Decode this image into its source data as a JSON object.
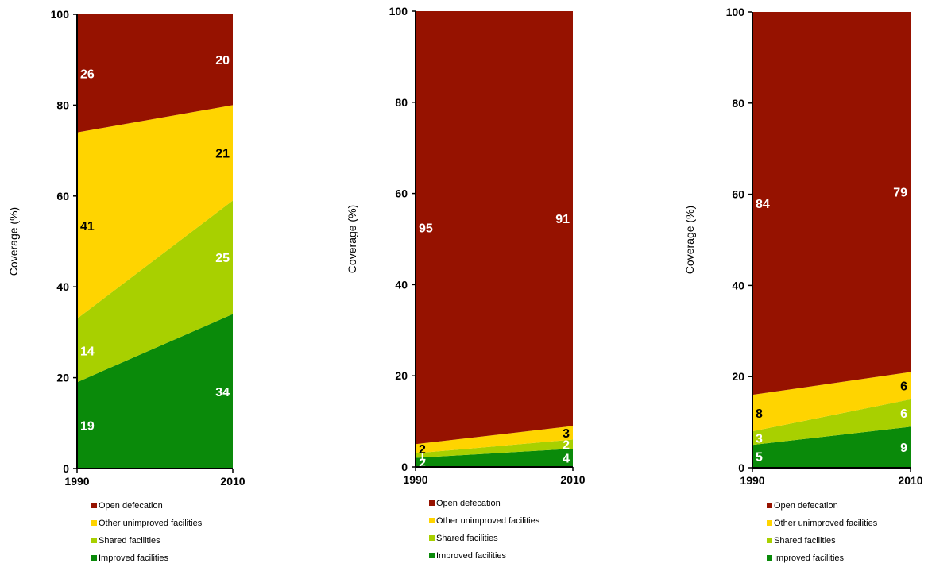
{
  "chart_data": [
    {
      "type": "area",
      "x": [
        "1990",
        "2010"
      ],
      "ylabel": "Coverage (%)",
      "ylim": [
        0,
        100
      ],
      "yticks": [
        "0",
        "20",
        "40",
        "60",
        "80",
        "100"
      ],
      "legend_position": "bottom",
      "series": [
        {
          "name": "Improved facilities",
          "values": [
            19,
            34
          ],
          "labels": [
            "19",
            "34"
          ],
          "color": "#0a8a0a",
          "label_color": "#ffffff"
        },
        {
          "name": "Shared facilities",
          "values": [
            14,
            25
          ],
          "labels": [
            "14",
            "25"
          ],
          "color": "#a8d000",
          "label_color": "#ffffff"
        },
        {
          "name": "Other unimproved facilities",
          "values": [
            41,
            21
          ],
          "labels": [
            "41",
            "21"
          ],
          "color": "#ffd400",
          "label_color": "#000000"
        },
        {
          "name": "Open defecation",
          "values": [
            26,
            20
          ],
          "labels": [
            "26",
            "20"
          ],
          "color": "#961200",
          "label_color": "#ffffff"
        }
      ]
    },
    {
      "type": "area",
      "x": [
        "1990",
        "2010"
      ],
      "ylabel": "Coverage (%)",
      "ylim": [
        0,
        100
      ],
      "yticks": [
        "0",
        "20",
        "40",
        "60",
        "80",
        "100"
      ],
      "legend_position": "bottom",
      "series": [
        {
          "name": "Improved facilities",
          "values": [
            2,
            4
          ],
          "labels": [
            "2",
            "4"
          ],
          "color": "#0a8a0a",
          "label_color": "#ffffff"
        },
        {
          "name": "Shared facilities",
          "values": [
            1,
            2
          ],
          "labels": [
            "1",
            "2"
          ],
          "color": "#a8d000",
          "label_color": "#ffffff"
        },
        {
          "name": "Other unimproved facilities",
          "values": [
            2,
            3
          ],
          "labels": [
            "2",
            "3"
          ],
          "color": "#ffd400",
          "label_color": "#000000"
        },
        {
          "name": "Open defecation",
          "values": [
            95,
            91
          ],
          "labels": [
            "95",
            "91"
          ],
          "color": "#961200",
          "label_color": "#ffffff"
        }
      ]
    },
    {
      "type": "area",
      "x": [
        "1990",
        "2010"
      ],
      "ylabel": "Coverage (%)",
      "ylim": [
        0,
        100
      ],
      "yticks": [
        "0",
        "20",
        "40",
        "60",
        "80",
        "100"
      ],
      "legend_position": "bottom",
      "series": [
        {
          "name": "Improved facilities",
          "values": [
            5,
            9
          ],
          "labels": [
            "5",
            "9"
          ],
          "color": "#0a8a0a",
          "label_color": "#ffffff"
        },
        {
          "name": "Shared facilities",
          "values": [
            3,
            6
          ],
          "labels": [
            "3",
            "6"
          ],
          "color": "#a8d000",
          "label_color": "#ffffff"
        },
        {
          "name": "Other unimproved facilities",
          "values": [
            8,
            6
          ],
          "labels": [
            "8",
            "6"
          ],
          "color": "#ffd400",
          "label_color": "#000000"
        },
        {
          "name": "Open defecation",
          "values": [
            84,
            79
          ],
          "labels": [
            "84",
            "79"
          ],
          "color": "#961200",
          "label_color": "#ffffff"
        }
      ]
    }
  ]
}
